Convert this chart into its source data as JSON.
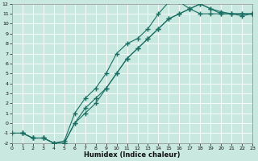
{
  "xlabel": "Humidex (Indice chaleur)",
  "ylabel": "",
  "xlim": [
    0,
    23
  ],
  "ylim": [
    -2,
    12
  ],
  "xticks": [
    0,
    1,
    2,
    3,
    4,
    5,
    6,
    7,
    8,
    9,
    10,
    11,
    12,
    13,
    14,
    15,
    16,
    17,
    18,
    19,
    20,
    21,
    22,
    23
  ],
  "yticks": [
    -2,
    -1,
    0,
    1,
    2,
    3,
    4,
    5,
    6,
    7,
    8,
    9,
    10,
    11,
    12
  ],
  "bg_color": "#c8e8e0",
  "grid_color": "#b0d8d0",
  "line_color": "#1a6e62",
  "line1_x": [
    1,
    2,
    3,
    4,
    5,
    6,
    7,
    8,
    9,
    10,
    11,
    12,
    13,
    14,
    15,
    16,
    17,
    18,
    19,
    20,
    21,
    22,
    23
  ],
  "line1_y": [
    -1,
    -1.5,
    -1.5,
    -2.0,
    -1.8,
    1.0,
    2.5,
    3.5,
    5.0,
    7.0,
    8.0,
    8.5,
    9.5,
    11.0,
    12.2,
    12.2,
    11.5,
    11.0,
    11.0,
    11.0,
    11.0,
    10.8,
    11.0
  ],
  "line2_x": [
    0,
    1,
    2,
    3,
    4,
    5,
    6,
    7,
    8,
    9,
    10,
    11,
    12,
    13,
    14,
    15,
    16,
    17,
    18,
    19,
    20,
    21,
    22,
    23
  ],
  "line2_y": [
    -1,
    -1.0,
    -1.5,
    -1.5,
    -2.0,
    -2.0,
    0.0,
    1.5,
    2.5,
    3.5,
    5.0,
    6.5,
    7.5,
    8.5,
    9.5,
    10.5,
    11.0,
    11.5,
    12.0,
    11.5,
    11.0,
    11.0,
    11.0,
    11.0
  ],
  "line3_x": [
    1,
    2,
    3,
    4,
    5,
    6,
    7,
    8,
    9,
    10,
    11,
    12,
    13,
    14,
    15,
    16,
    17,
    18,
    19,
    20,
    21,
    22,
    23
  ],
  "line3_y": [
    -1,
    -1.5,
    -1.5,
    -2.0,
    -2.0,
    0.0,
    1.0,
    2.0,
    3.5,
    5.0,
    6.5,
    7.5,
    8.5,
    9.5,
    10.5,
    11.0,
    11.5,
    12.0,
    11.5,
    11.2,
    11.0,
    11.0,
    11.0
  ],
  "marker": "+",
  "markersize": 4,
  "linewidth": 0.8
}
